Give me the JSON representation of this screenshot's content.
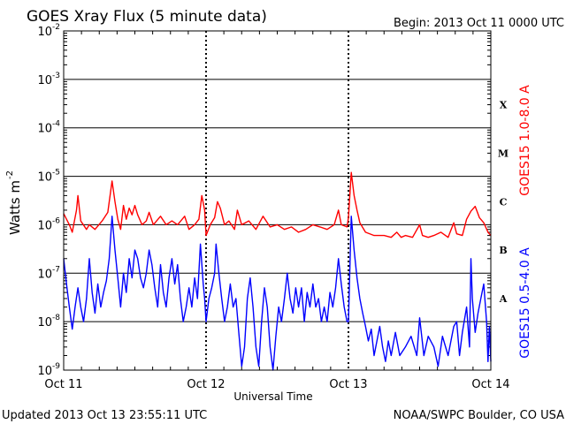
{
  "chart_data": {
    "type": "line",
    "title": "GOES Xray Flux (5 minute data)",
    "begin_label": "Begin:  2013 Oct 11 0000 UTC",
    "xlabel": "Universal Time",
    "ylabel": "Watts m",
    "ylabel_sup": "-2",
    "y_scale": "log",
    "ylim": [
      1e-09,
      0.01
    ],
    "y_ticks": [
      {
        "value": 0.01,
        "base": "10",
        "exp": "-2"
      },
      {
        "value": 0.001,
        "base": "10",
        "exp": "-3"
      },
      {
        "value": 0.0001,
        "base": "10",
        "exp": "-4"
      },
      {
        "value": 1e-05,
        "base": "10",
        "exp": "-5"
      },
      {
        "value": 1e-06,
        "base": "10",
        "exp": "-6"
      },
      {
        "value": 1e-07,
        "base": "10",
        "exp": "-7"
      },
      {
        "value": 1e-08,
        "base": "10",
        "exp": "-8"
      },
      {
        "value": 1e-09,
        "base": "10",
        "exp": "-9"
      }
    ],
    "x_unit": "days since Oct 11 00:00 UTC",
    "xlim": [
      0,
      3
    ],
    "x_ticks": [
      {
        "value": 0,
        "label": "Oct 11"
      },
      {
        "value": 1,
        "label": "Oct 12"
      },
      {
        "value": 2,
        "label": "Oct 13"
      },
      {
        "value": 3,
        "label": "Oct 14"
      }
    ],
    "flare_classes": [
      {
        "label": "X",
        "value": 0.0003
      },
      {
        "label": "M",
        "value": 3e-05
      },
      {
        "label": "C",
        "value": 3e-06
      },
      {
        "label": "B",
        "value": 3e-07
      },
      {
        "label": "A",
        "value": 3e-08
      }
    ],
    "horizontal_grid": true,
    "day_dividers": true,
    "series": [
      {
        "name": "GOES15 1.0-8.0 A",
        "color": "#ff0000",
        "points": [
          [
            0.0,
            1.7e-06
          ],
          [
            0.04,
            1e-06
          ],
          [
            0.06,
            7e-07
          ],
          [
            0.09,
            2e-06
          ],
          [
            0.1,
            4e-06
          ],
          [
            0.12,
            1.2e-06
          ],
          [
            0.16,
            8e-07
          ],
          [
            0.18,
            1e-06
          ],
          [
            0.22,
            8e-07
          ],
          [
            0.27,
            1.2e-06
          ],
          [
            0.31,
            1.8e-06
          ],
          [
            0.34,
            8e-06
          ],
          [
            0.36,
            3e-06
          ],
          [
            0.38,
            1.3e-06
          ],
          [
            0.4,
            8e-07
          ],
          [
            0.42,
            2.5e-06
          ],
          [
            0.44,
            1.3e-06
          ],
          [
            0.46,
            2.2e-06
          ],
          [
            0.48,
            1.6e-06
          ],
          [
            0.5,
            2.5e-06
          ],
          [
            0.52,
            1.6e-06
          ],
          [
            0.55,
            1e-06
          ],
          [
            0.58,
            1.2e-06
          ],
          [
            0.6,
            1.8e-06
          ],
          [
            0.63,
            1e-06
          ],
          [
            0.68,
            1.5e-06
          ],
          [
            0.72,
            1e-06
          ],
          [
            0.76,
            1.2e-06
          ],
          [
            0.8,
            1e-06
          ],
          [
            0.85,
            1.5e-06
          ],
          [
            0.88,
            8e-07
          ],
          [
            0.92,
            1e-06
          ],
          [
            0.95,
            1.3e-06
          ],
          [
            0.97,
            4e-06
          ],
          [
            0.99,
            2e-06
          ],
          [
            1.0,
            6e-07
          ],
          [
            1.03,
            1e-06
          ],
          [
            1.06,
            1.4e-06
          ],
          [
            1.08,
            3e-06
          ],
          [
            1.1,
            2.2e-06
          ],
          [
            1.13,
            1e-06
          ],
          [
            1.16,
            1.2e-06
          ],
          [
            1.2,
            8e-07
          ],
          [
            1.22,
            2e-06
          ],
          [
            1.25,
            1e-06
          ],
          [
            1.3,
            1.2e-06
          ],
          [
            1.35,
            8e-07
          ],
          [
            1.4,
            1.5e-06
          ],
          [
            1.45,
            9e-07
          ],
          [
            1.5,
            1e-06
          ],
          [
            1.55,
            8e-07
          ],
          [
            1.6,
            9e-07
          ],
          [
            1.65,
            7e-07
          ],
          [
            1.7,
            8e-07
          ],
          [
            1.75,
            1e-06
          ],
          [
            1.8,
            9e-07
          ],
          [
            1.85,
            8e-07
          ],
          [
            1.9,
            1e-06
          ],
          [
            1.93,
            2e-06
          ],
          [
            1.95,
            1e-06
          ],
          [
            1.99,
            9e-07
          ],
          [
            2.0,
            1.4e-06
          ],
          [
            2.02,
            1.2e-05
          ],
          [
            2.04,
            4e-06
          ],
          [
            2.06,
            2e-06
          ],
          [
            2.08,
            1.1e-06
          ],
          [
            2.12,
            7e-07
          ],
          [
            2.18,
            6e-07
          ],
          [
            2.25,
            6e-07
          ],
          [
            2.3,
            5.5e-07
          ],
          [
            2.34,
            7e-07
          ],
          [
            2.37,
            5.5e-07
          ],
          [
            2.4,
            6e-07
          ],
          [
            2.45,
            5.5e-07
          ],
          [
            2.5,
            1e-06
          ],
          [
            2.52,
            6e-07
          ],
          [
            2.56,
            5.5e-07
          ],
          [
            2.6,
            6e-07
          ],
          [
            2.65,
            7e-07
          ],
          [
            2.7,
            5.5e-07
          ],
          [
            2.74,
            1.1e-06
          ],
          [
            2.76,
            6.5e-07
          ],
          [
            2.8,
            6e-07
          ],
          [
            2.83,
            1.3e-06
          ],
          [
            2.86,
            1.9e-06
          ],
          [
            2.89,
            2.4e-06
          ],
          [
            2.92,
            1.4e-06
          ],
          [
            2.95,
            1.1e-06
          ],
          [
            2.98,
            7e-07
          ],
          [
            3.0,
            6e-07
          ]
        ]
      },
      {
        "name": "GOES15 0.5-4.0 A",
        "color": "#0000ff",
        "points": [
          [
            0.0,
            2e-07
          ],
          [
            0.02,
            6e-08
          ],
          [
            0.04,
            2e-08
          ],
          [
            0.06,
            7e-09
          ],
          [
            0.08,
            2e-08
          ],
          [
            0.1,
            5e-08
          ],
          [
            0.12,
            2e-08
          ],
          [
            0.14,
            1e-08
          ],
          [
            0.16,
            3e-08
          ],
          [
            0.18,
            2e-07
          ],
          [
            0.2,
            4e-08
          ],
          [
            0.22,
            1.5e-08
          ],
          [
            0.24,
            6e-08
          ],
          [
            0.26,
            2e-08
          ],
          [
            0.28,
            4e-08
          ],
          [
            0.3,
            7e-08
          ],
          [
            0.32,
            2e-07
          ],
          [
            0.34,
            1.5e-06
          ],
          [
            0.36,
            3e-07
          ],
          [
            0.38,
            8e-08
          ],
          [
            0.4,
            2e-08
          ],
          [
            0.42,
            1e-07
          ],
          [
            0.44,
            4e-08
          ],
          [
            0.46,
            2e-07
          ],
          [
            0.48,
            8e-08
          ],
          [
            0.5,
            3e-07
          ],
          [
            0.52,
            2e-07
          ],
          [
            0.54,
            8e-08
          ],
          [
            0.56,
            5e-08
          ],
          [
            0.58,
            1e-07
          ],
          [
            0.6,
            3e-07
          ],
          [
            0.62,
            1.5e-07
          ],
          [
            0.64,
            5e-08
          ],
          [
            0.66,
            2e-08
          ],
          [
            0.68,
            1.5e-07
          ],
          [
            0.7,
            4e-08
          ],
          [
            0.72,
            2e-08
          ],
          [
            0.74,
            8e-08
          ],
          [
            0.76,
            2e-07
          ],
          [
            0.78,
            6e-08
          ],
          [
            0.8,
            1.5e-07
          ],
          [
            0.82,
            3e-08
          ],
          [
            0.84,
            1e-08
          ],
          [
            0.86,
            2e-08
          ],
          [
            0.88,
            5e-08
          ],
          [
            0.9,
            2e-08
          ],
          [
            0.92,
            8e-08
          ],
          [
            0.94,
            3e-08
          ],
          [
            0.96,
            4e-07
          ],
          [
            0.98,
            6e-08
          ],
          [
            0.99,
            3e-08
          ],
          [
            1.0,
            1e-08
          ],
          [
            1.02,
            3e-08
          ],
          [
            1.04,
            5e-08
          ],
          [
            1.06,
            1e-07
          ],
          [
            1.07,
            4e-07
          ],
          [
            1.09,
            1e-07
          ],
          [
            1.11,
            3e-08
          ],
          [
            1.13,
            1e-08
          ],
          [
            1.15,
            2e-08
          ],
          [
            1.17,
            6e-08
          ],
          [
            1.19,
            2e-08
          ],
          [
            1.21,
            3e-08
          ],
          [
            1.23,
            6e-09
          ],
          [
            1.25,
            1.2e-09
          ],
          [
            1.27,
            3e-09
          ],
          [
            1.29,
            3e-08
          ],
          [
            1.31,
            8e-08
          ],
          [
            1.33,
            2e-08
          ],
          [
            1.35,
            3e-09
          ],
          [
            1.37,
            1.2e-09
          ],
          [
            1.39,
            1e-08
          ],
          [
            1.41,
            5e-08
          ],
          [
            1.43,
            2e-08
          ],
          [
            1.45,
            3e-09
          ],
          [
            1.47,
            1e-09
          ],
          [
            1.49,
            5e-09
          ],
          [
            1.51,
            2e-08
          ],
          [
            1.53,
            1e-08
          ],
          [
            1.55,
            3e-08
          ],
          [
            1.57,
            1e-07
          ],
          [
            1.59,
            3e-08
          ],
          [
            1.61,
            1.5e-08
          ],
          [
            1.63,
            5e-08
          ],
          [
            1.65,
            2e-08
          ],
          [
            1.67,
            5e-08
          ],
          [
            1.69,
            1e-08
          ],
          [
            1.71,
            4e-08
          ],
          [
            1.73,
            2e-08
          ],
          [
            1.75,
            6e-08
          ],
          [
            1.77,
            2e-08
          ],
          [
            1.79,
            3e-08
          ],
          [
            1.81,
            1e-08
          ],
          [
            1.83,
            2e-08
          ],
          [
            1.85,
            1e-08
          ],
          [
            1.87,
            4e-08
          ],
          [
            1.89,
            2e-08
          ],
          [
            1.91,
            5e-08
          ],
          [
            1.93,
            2e-07
          ],
          [
            1.95,
            6e-08
          ],
          [
            1.97,
            2e-08
          ],
          [
            1.99,
            1e-08
          ],
          [
            2.0,
            1e-08
          ],
          [
            2.02,
            1.5e-06
          ],
          [
            2.04,
            3e-07
          ],
          [
            2.06,
            8e-08
          ],
          [
            2.08,
            3e-08
          ],
          [
            2.1,
            1.5e-08
          ],
          [
            2.12,
            8e-09
          ],
          [
            2.14,
            4e-09
          ],
          [
            2.16,
            7e-09
          ],
          [
            2.18,
            2e-09
          ],
          [
            2.2,
            4e-09
          ],
          [
            2.22,
            8e-09
          ],
          [
            2.24,
            3e-09
          ],
          [
            2.26,
            1.5e-09
          ],
          [
            2.28,
            4e-09
          ],
          [
            2.3,
            2e-09
          ],
          [
            2.33,
            6e-09
          ],
          [
            2.36,
            2e-09
          ],
          [
            2.4,
            3e-09
          ],
          [
            2.44,
            5e-09
          ],
          [
            2.48,
            2e-09
          ],
          [
            2.5,
            1.2e-08
          ],
          [
            2.53,
            2e-09
          ],
          [
            2.56,
            5e-09
          ],
          [
            2.6,
            3e-09
          ],
          [
            2.63,
            1.2e-09
          ],
          [
            2.66,
            5e-09
          ],
          [
            2.7,
            2e-09
          ],
          [
            2.74,
            8e-09
          ],
          [
            2.76,
            1e-08
          ],
          [
            2.78,
            2e-09
          ],
          [
            2.8,
            6e-09
          ],
          [
            2.83,
            2e-08
          ],
          [
            2.85,
            3e-09
          ],
          [
            2.86,
            2e-07
          ],
          [
            2.87,
            3e-08
          ],
          [
            2.89,
            6e-09
          ],
          [
            2.91,
            1.5e-08
          ],
          [
            2.93,
            3e-08
          ],
          [
            2.95,
            6e-08
          ],
          [
            2.97,
            1e-08
          ],
          [
            2.98,
            1.5e-09
          ],
          [
            2.99,
            8e-09
          ],
          [
            3.0,
            1.5e-09
          ]
        ]
      }
    ]
  },
  "footer": {
    "updated": "Updated 2013 Oct 13 23:55:11 UTC",
    "credit": "NOAA/SWPC Boulder, CO USA"
  }
}
